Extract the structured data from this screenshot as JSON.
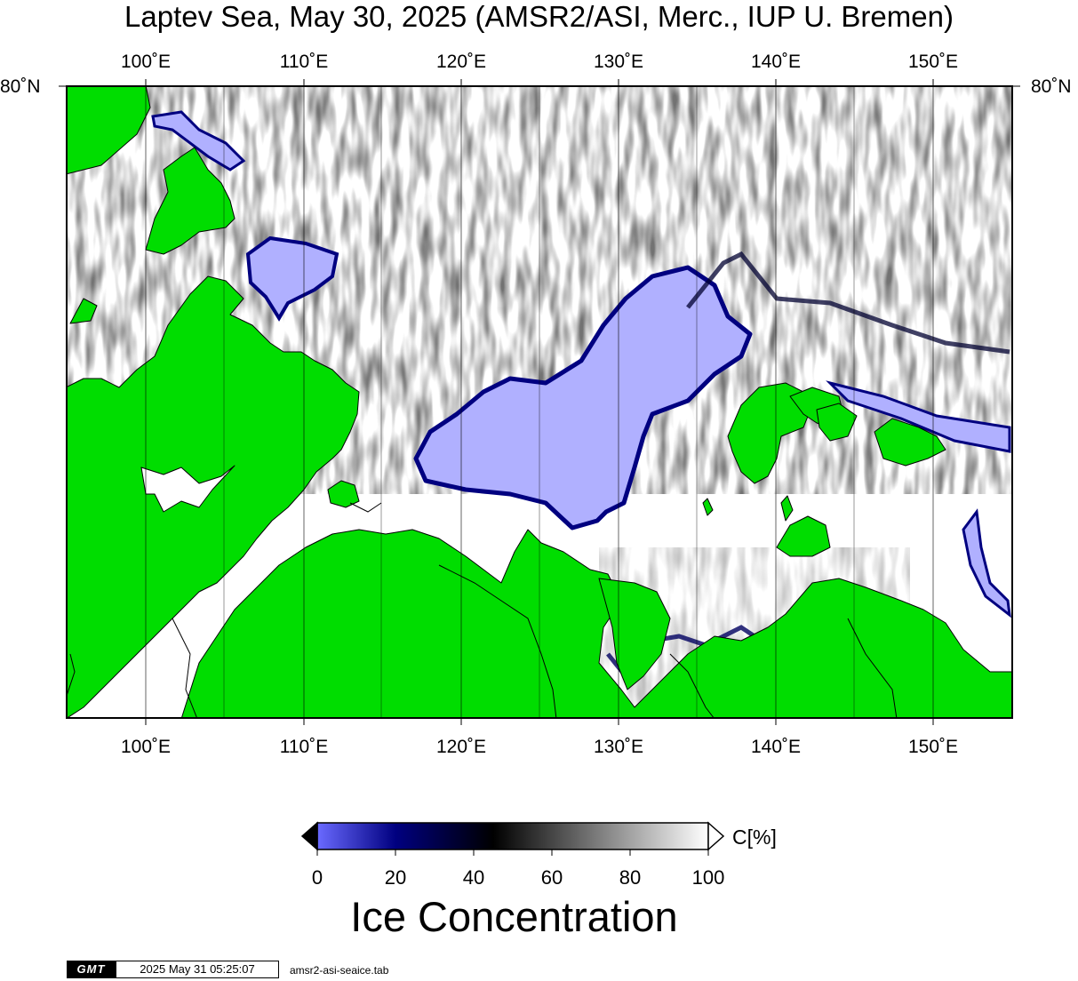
{
  "title": "Laptev Sea, May 30, 2025 (AMSR2/ASI, Merc., IUP U. Bremen)",
  "map": {
    "longitude_labels": [
      "100˚E",
      "110˚E",
      "120˚E",
      "130˚E",
      "140˚E",
      "150˚E"
    ],
    "longitudes": [
      100,
      110,
      120,
      130,
      140,
      150
    ],
    "latitude_label": "80˚N",
    "lon_range": [
      95,
      155
    ],
    "colors": {
      "land": "#00dd00",
      "open_water": "#b0b0ff",
      "coast": "#000000",
      "gridline": "#000000"
    }
  },
  "colorbar": {
    "unit_label": "C[%]",
    "ticks": [
      "0",
      "20",
      "40",
      "60",
      "80",
      "100"
    ],
    "title": "Ice Concentration",
    "stops": [
      {
        "value": 0,
        "color": "#6a6aff"
      },
      {
        "value": 20,
        "color": "#000080"
      },
      {
        "value": 45,
        "color": "#000000"
      },
      {
        "value": 100,
        "color": "#ffffff"
      }
    ]
  },
  "footer": {
    "logo": "GMT",
    "timestamp": "2025 May 31 05:25:07",
    "source": "amsr2-asi-seaice.tab"
  }
}
